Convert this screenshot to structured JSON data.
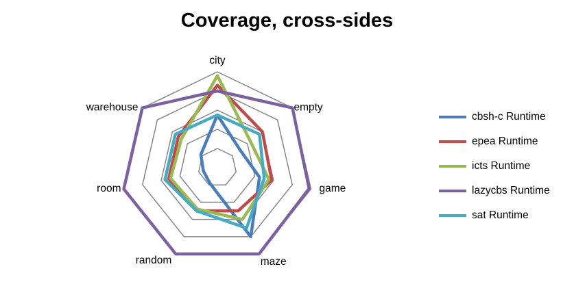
{
  "chart_data": {
    "type": "radar",
    "title": "Coverage, cross-sides",
    "axes": [
      "city",
      "empty",
      "game",
      "maze",
      "random",
      "room",
      "warehouse"
    ],
    "rlim": [
      0,
      1
    ],
    "rings": [
      0.2,
      0.4,
      0.6,
      0.8,
      1.0
    ],
    "grid": true,
    "legend_position": "right",
    "series": [
      {
        "name": "cbsh-c Runtime",
        "color": "#4a7ebb",
        "values": [
          0.55,
          0.3,
          0.45,
          0.8,
          0.18,
          0.15,
          0.22
        ]
      },
      {
        "name": "epea Runtime",
        "color": "#be4b48",
        "values": [
          0.86,
          0.6,
          0.58,
          0.5,
          0.5,
          0.52,
          0.52
        ]
      },
      {
        "name": "icts Runtime",
        "color": "#98b954",
        "values": [
          0.96,
          0.44,
          0.55,
          0.6,
          0.48,
          0.5,
          0.48
        ]
      },
      {
        "name": "lazycbs Runtime",
        "color": "#7d60a0",
        "values": [
          0.8,
          1.0,
          0.98,
          1.0,
          1.0,
          1.0,
          1.0
        ]
      },
      {
        "name": "sat Runtime",
        "color": "#46aac5",
        "values": [
          0.55,
          0.56,
          0.5,
          0.7,
          0.5,
          0.56,
          0.56
        ]
      }
    ]
  }
}
